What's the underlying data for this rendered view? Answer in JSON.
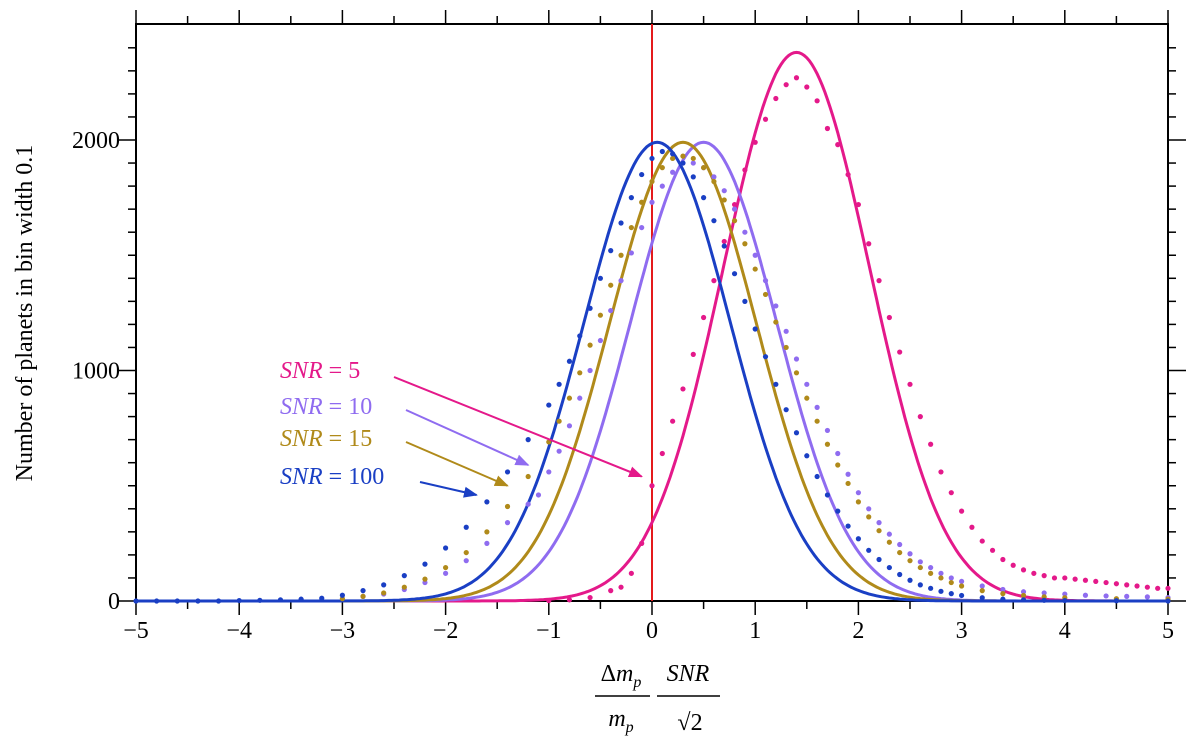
{
  "chart_data": {
    "type": "line",
    "xlim": [
      -5,
      5
    ],
    "ylim": [
      0,
      2500
    ],
    "x_ticks": [
      "−5",
      "−4",
      "−3",
      "−2",
      "−1",
      "0",
      "1",
      "2",
      "3",
      "4",
      "5"
    ],
    "y_ticks": [
      "0",
      "1000",
      "2000"
    ],
    "ylabel": "Number of planets in bin width 0.1",
    "xlabel": {
      "num_left": "Δm_p",
      "den_left": "m_p",
      "num_right": "SNR",
      "den_right": "√2"
    },
    "grid": false,
    "vertical_line": {
      "x": 0,
      "color": "#e41a1c"
    },
    "series": [
      {
        "name": "SNR = 5",
        "color": "#e4198a",
        "model_curve": {
          "peak_x": 1.4,
          "peak_y": 2380,
          "sigma": 0.71
        },
        "points": [
          [
            -1.0,
            2
          ],
          [
            -0.8,
            5
          ],
          [
            -0.6,
            15
          ],
          [
            -0.4,
            45
          ],
          [
            -0.3,
            60
          ],
          [
            -0.2,
            120
          ],
          [
            -0.1,
            250
          ],
          [
            0.0,
            500
          ],
          [
            0.1,
            640
          ],
          [
            0.2,
            780
          ],
          [
            0.3,
            920
          ],
          [
            0.4,
            1070
          ],
          [
            0.5,
            1230
          ],
          [
            0.6,
            1390
          ],
          [
            0.7,
            1560
          ],
          [
            0.8,
            1720
          ],
          [
            0.9,
            1870
          ],
          [
            1.0,
            1990
          ],
          [
            1.1,
            2090
          ],
          [
            1.2,
            2180
          ],
          [
            1.3,
            2240
          ],
          [
            1.4,
            2270
          ],
          [
            1.5,
            2230
          ],
          [
            1.6,
            2170
          ],
          [
            1.7,
            2050
          ],
          [
            1.8,
            1980
          ],
          [
            1.9,
            1850
          ],
          [
            2.0,
            1720
          ],
          [
            2.1,
            1550
          ],
          [
            2.2,
            1390
          ],
          [
            2.3,
            1230
          ],
          [
            2.4,
            1080
          ],
          [
            2.5,
            940
          ],
          [
            2.6,
            800
          ],
          [
            2.7,
            680
          ],
          [
            2.8,
            560
          ],
          [
            2.9,
            470
          ],
          [
            3.0,
            390
          ],
          [
            3.1,
            320
          ],
          [
            3.2,
            260
          ],
          [
            3.3,
            220
          ],
          [
            3.4,
            180
          ],
          [
            3.5,
            155
          ],
          [
            3.6,
            135
          ],
          [
            3.7,
            120
          ],
          [
            3.8,
            110
          ],
          [
            3.9,
            100
          ],
          [
            4.0,
            100
          ],
          [
            4.1,
            95
          ],
          [
            4.2,
            90
          ],
          [
            4.3,
            85
          ],
          [
            4.4,
            80
          ],
          [
            4.5,
            75
          ],
          [
            4.6,
            70
          ],
          [
            4.7,
            65
          ],
          [
            4.8,
            60
          ],
          [
            4.9,
            55
          ],
          [
            5.0,
            55
          ]
        ]
      },
      {
        "name": "SNR = 10",
        "color": "#8f6cf0",
        "model_curve": {
          "peak_x": 0.5,
          "peak_y": 1990,
          "sigma": 0.71
        },
        "points": [
          [
            -2.8,
            20
          ],
          [
            -2.6,
            30
          ],
          [
            -2.4,
            50
          ],
          [
            -2.2,
            80
          ],
          [
            -2.0,
            120
          ],
          [
            -1.8,
            175
          ],
          [
            -1.6,
            250
          ],
          [
            -1.4,
            340
          ],
          [
            -1.2,
            420
          ],
          [
            -1.1,
            460
          ],
          [
            -1.0,
            560
          ],
          [
            -0.9,
            650
          ],
          [
            -0.8,
            760
          ],
          [
            -0.7,
            880
          ],
          [
            -0.6,
            1000
          ],
          [
            -0.5,
            1130
          ],
          [
            -0.4,
            1260
          ],
          [
            -0.3,
            1390
          ],
          [
            -0.2,
            1510
          ],
          [
            -0.1,
            1620
          ],
          [
            0.0,
            1730
          ],
          [
            0.1,
            1800
          ],
          [
            0.2,
            1860
          ],
          [
            0.3,
            1900
          ],
          [
            0.4,
            1900
          ],
          [
            0.5,
            1880
          ],
          [
            0.6,
            1840
          ],
          [
            0.7,
            1780
          ],
          [
            0.8,
            1700
          ],
          [
            0.9,
            1600
          ],
          [
            1.0,
            1500
          ],
          [
            1.1,
            1390
          ],
          [
            1.2,
            1280
          ],
          [
            1.3,
            1170
          ],
          [
            1.4,
            1050
          ],
          [
            1.5,
            940
          ],
          [
            1.6,
            840
          ],
          [
            1.7,
            740
          ],
          [
            1.8,
            640
          ],
          [
            1.9,
            550
          ],
          [
            2.0,
            470
          ],
          [
            2.1,
            400
          ],
          [
            2.2,
            340
          ],
          [
            2.3,
            290
          ],
          [
            2.4,
            245
          ],
          [
            2.5,
            205
          ],
          [
            2.6,
            170
          ],
          [
            2.7,
            145
          ],
          [
            2.8,
            120
          ],
          [
            2.9,
            100
          ],
          [
            3.0,
            85
          ],
          [
            3.2,
            65
          ],
          [
            3.4,
            50
          ],
          [
            3.6,
            40
          ],
          [
            3.8,
            35
          ],
          [
            4.0,
            30
          ],
          [
            4.2,
            25
          ],
          [
            4.4,
            22
          ],
          [
            4.6,
            20
          ],
          [
            4.8,
            18
          ],
          [
            5.0,
            15
          ]
        ]
      },
      {
        "name": "SNR = 15",
        "color": "#b08a1a",
        "model_curve": {
          "peak_x": 0.3,
          "peak_y": 1990,
          "sigma": 0.71
        },
        "points": [
          [
            -3.0,
            10
          ],
          [
            -2.8,
            20
          ],
          [
            -2.6,
            35
          ],
          [
            -2.4,
            60
          ],
          [
            -2.2,
            95
          ],
          [
            -2.0,
            145
          ],
          [
            -1.8,
            210
          ],
          [
            -1.6,
            300
          ],
          [
            -1.4,
            410
          ],
          [
            -1.2,
            540
          ],
          [
            -1.0,
            690
          ],
          [
            -0.9,
            780
          ],
          [
            -0.8,
            880
          ],
          [
            -0.7,
            990
          ],
          [
            -0.6,
            1110
          ],
          [
            -0.5,
            1240
          ],
          [
            -0.4,
            1370
          ],
          [
            -0.3,
            1500
          ],
          [
            -0.2,
            1620
          ],
          [
            -0.1,
            1730
          ],
          [
            0.0,
            1820
          ],
          [
            0.1,
            1880
          ],
          [
            0.2,
            1920
          ],
          [
            0.3,
            1930
          ],
          [
            0.4,
            1920
          ],
          [
            0.5,
            1880
          ],
          [
            0.6,
            1820
          ],
          [
            0.7,
            1740
          ],
          [
            0.8,
            1650
          ],
          [
            0.9,
            1550
          ],
          [
            1.0,
            1440
          ],
          [
            1.1,
            1330
          ],
          [
            1.2,
            1210
          ],
          [
            1.3,
            1100
          ],
          [
            1.4,
            990
          ],
          [
            1.5,
            880
          ],
          [
            1.6,
            780
          ],
          [
            1.7,
            680
          ],
          [
            1.8,
            590
          ],
          [
            1.9,
            510
          ],
          [
            2.0,
            430
          ],
          [
            2.1,
            365
          ],
          [
            2.2,
            305
          ],
          [
            2.3,
            255
          ],
          [
            2.4,
            210
          ],
          [
            2.5,
            175
          ],
          [
            2.6,
            145
          ],
          [
            2.7,
            120
          ],
          [
            2.8,
            100
          ],
          [
            2.9,
            80
          ],
          [
            3.0,
            65
          ],
          [
            3.2,
            45
          ],
          [
            3.4,
            32
          ],
          [
            3.6,
            24
          ],
          [
            3.8,
            18
          ],
          [
            4.0,
            14
          ],
          [
            4.5,
            10
          ],
          [
            5.0,
            8
          ]
        ]
      },
      {
        "name": "SNR = 100",
        "color": "#1a3fc4",
        "model_curve": {
          "peak_x": 0.05,
          "peak_y": 1990,
          "sigma": 0.71
        },
        "points": [
          [
            -5.0,
            0
          ],
          [
            -4.8,
            0
          ],
          [
            -4.6,
            0
          ],
          [
            -4.4,
            0
          ],
          [
            -4.2,
            0
          ],
          [
            -4.0,
            2
          ],
          [
            -3.8,
            3
          ],
          [
            -3.6,
            5
          ],
          [
            -3.4,
            8
          ],
          [
            -3.2,
            12
          ],
          [
            -3.0,
            25
          ],
          [
            -2.8,
            45
          ],
          [
            -2.6,
            70
          ],
          [
            -2.4,
            110
          ],
          [
            -2.2,
            160
          ],
          [
            -2.0,
            230
          ],
          [
            -1.8,
            320
          ],
          [
            -1.6,
            430
          ],
          [
            -1.4,
            560
          ],
          [
            -1.2,
            700
          ],
          [
            -1.0,
            850
          ],
          [
            -0.9,
            940
          ],
          [
            -0.8,
            1040
          ],
          [
            -0.7,
            1150
          ],
          [
            -0.6,
            1270
          ],
          [
            -0.5,
            1400
          ],
          [
            -0.4,
            1520
          ],
          [
            -0.3,
            1640
          ],
          [
            -0.2,
            1750
          ],
          [
            -0.1,
            1850
          ],
          [
            0.0,
            1920
          ],
          [
            0.1,
            1950
          ],
          [
            0.2,
            1940
          ],
          [
            0.3,
            1900
          ],
          [
            0.4,
            1840
          ],
          [
            0.5,
            1750
          ],
          [
            0.6,
            1650
          ],
          [
            0.7,
            1540
          ],
          [
            0.8,
            1420
          ],
          [
            0.9,
            1300
          ],
          [
            1.0,
            1180
          ],
          [
            1.1,
            1060
          ],
          [
            1.2,
            940
          ],
          [
            1.3,
            830
          ],
          [
            1.4,
            730
          ],
          [
            1.5,
            630
          ],
          [
            1.6,
            540
          ],
          [
            1.7,
            460
          ],
          [
            1.8,
            390
          ],
          [
            1.9,
            325
          ],
          [
            2.0,
            270
          ],
          [
            2.1,
            220
          ],
          [
            2.2,
            180
          ],
          [
            2.3,
            145
          ],
          [
            2.4,
            115
          ],
          [
            2.5,
            90
          ],
          [
            2.6,
            70
          ],
          [
            2.7,
            55
          ],
          [
            2.8,
            42
          ],
          [
            2.9,
            32
          ],
          [
            3.0,
            24
          ],
          [
            3.2,
            14
          ],
          [
            3.4,
            8
          ],
          [
            3.6,
            5
          ],
          [
            3.8,
            3
          ],
          [
            4.0,
            2
          ],
          [
            4.5,
            1
          ],
          [
            5.0,
            0
          ]
        ]
      }
    ],
    "annotations": [
      {
        "italic": "SNR",
        "rest": " = 5",
        "color": "#e4198a",
        "arrow_to": [
          -0.1,
          540
        ]
      },
      {
        "italic": "SNR",
        "rest": " = 10",
        "color": "#8f6cf0",
        "arrow_to": [
          -1.2,
          590
        ]
      },
      {
        "italic": "SNR",
        "rest": " = 15",
        "color": "#b08a1a",
        "arrow_to": [
          -1.4,
          500
        ]
      },
      {
        "italic": "SNR",
        "rest": " = 100",
        "color": "#1a3fc4",
        "arrow_to": [
          -1.7,
          460
        ]
      }
    ]
  }
}
